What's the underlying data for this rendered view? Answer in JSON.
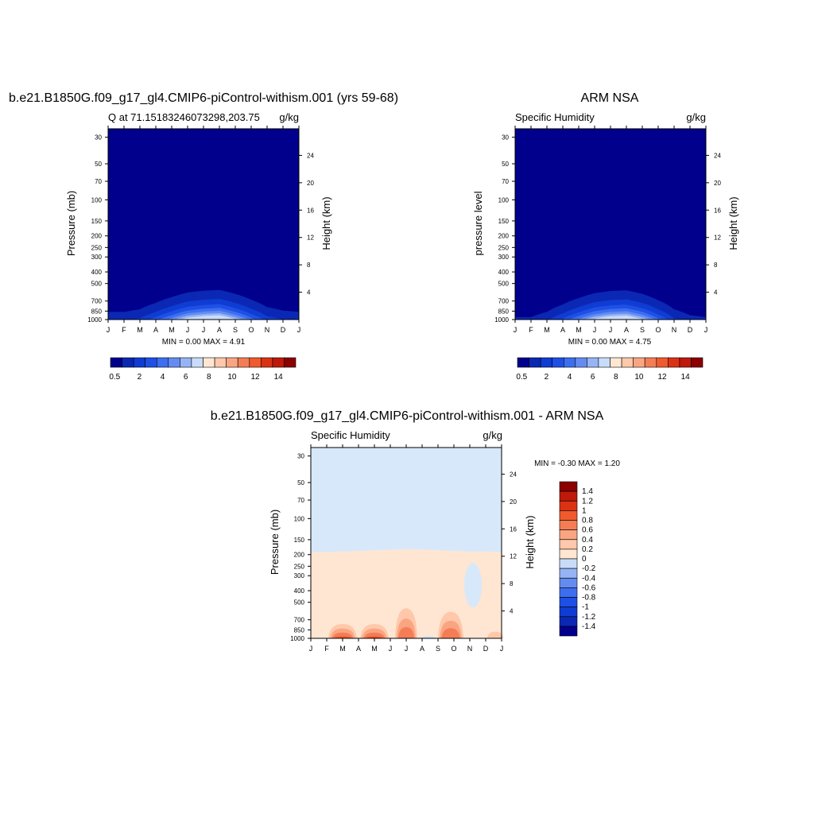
{
  "months": [
    "J",
    "F",
    "M",
    "A",
    "M",
    "J",
    "J",
    "A",
    "S",
    "O",
    "N",
    "D",
    "J"
  ],
  "pressure_ticks": [
    30,
    50,
    70,
    100,
    150,
    200,
    250,
    300,
    400,
    500,
    700,
    850,
    1000
  ],
  "colors": {
    "blue_levels": [
      "#00008C",
      "#0A28B4",
      "#0F3CD2",
      "#1E50E6",
      "#3C6EF0",
      "#648CF0",
      "#96B4F5",
      "#C8DCFA"
    ],
    "red_levels": [
      "#FFE6D2",
      "#FFC8AA",
      "#FAA582",
      "#F57D55",
      "#F05A2D",
      "#DC3214",
      "#BE190A",
      "#8C0000"
    ],
    "zero_band": "#D7E8FA",
    "pos_band": "#FFE6D2"
  },
  "chart_data": [
    {
      "type": "heatmap",
      "title": "b.e21.B1850G.f09_g17_gl4.CMIP6-piControl-withism.001 (yrs 59-68)",
      "subtitle_left": "Q at 71.15183246073298,203.75",
      "subtitle_right": "g/kg",
      "ylabel": "Pressure (mb)",
      "ylabel_right": "Height (km)",
      "stats": "MIN =   0.00 MAX =   4.91",
      "min": 0.0,
      "max": 4.91,
      "colorbar_ticks": [
        "0.5",
        "2",
        "4",
        "6",
        "8",
        "10",
        "12",
        "14"
      ],
      "height_ticks": [
        "24",
        "20",
        "16",
        "12",
        "8",
        "4"
      ],
      "contour_levels": [
        0.5,
        1,
        1.5,
        2,
        2.5,
        3,
        3.5,
        4,
        4.5
      ],
      "months": [
        1,
        2,
        3,
        4,
        5,
        6,
        7,
        8,
        9,
        10,
        11,
        12,
        13
      ],
      "surface_q": [
        0.9,
        0.9,
        1.1,
        1.8,
        2.8,
        4.0,
        4.6,
        4.9,
        3.6,
        2.3,
        1.3,
        1.0,
        0.9
      ]
    },
    {
      "type": "heatmap",
      "title": "ARM NSA",
      "subtitle_left": "Specific Humidity",
      "subtitle_right": "g/kg",
      "ylabel": "pressure level",
      "ylabel_right": "Height (km)",
      "stats": "MIN =   0.00 MAX =   4.75",
      "min": 0.0,
      "max": 4.75,
      "colorbar_ticks": [
        "0.5",
        "2",
        "4",
        "6",
        "8",
        "10",
        "12",
        "14"
      ],
      "height_ticks": [
        "24",
        "20",
        "16",
        "12",
        "8",
        "4"
      ],
      "contour_levels": [
        0.5,
        1,
        1.5,
        2,
        2.5,
        3,
        3.5,
        4,
        4.5
      ],
      "months": [
        1,
        2,
        3,
        4,
        5,
        6,
        7,
        8,
        9,
        10,
        11,
        12,
        13
      ],
      "surface_q": [
        0.6,
        0.6,
        0.9,
        1.6,
        2.6,
        3.8,
        4.5,
        4.75,
        3.6,
        2.2,
        1.1,
        0.7,
        0.6
      ]
    },
    {
      "type": "heatmap",
      "title": "b.e21.B1850G.f09_g17_gl4.CMIP6-piControl-withism.001 - ARM NSA",
      "subtitle_left": "Specific Humidity",
      "subtitle_right": "g/kg",
      "ylabel": "Pressure (mb)",
      "ylabel_right": "Height (km)",
      "stats": "MIN =  -0.30 MAX =   1.20",
      "min": -0.3,
      "max": 1.2,
      "colorbar_ticks": [
        "1.4",
        "1.2",
        "1",
        "0.8",
        "0.6",
        "0.4",
        "0.2",
        "0",
        "-0.2",
        "-0.4",
        "-0.6",
        "-0.8",
        "-1",
        "-1.2",
        "-1.4"
      ],
      "height_ticks": [
        "24",
        "20",
        "16",
        "12",
        "8",
        "4"
      ],
      "contour_levels": [
        -0.2,
        0,
        0.2,
        0.4,
        0.6,
        0.8,
        1.0
      ],
      "boundary_200mb": [
        190,
        190,
        188,
        186,
        184,
        182,
        180,
        181,
        184,
        186,
        188,
        188,
        190
      ]
    }
  ]
}
